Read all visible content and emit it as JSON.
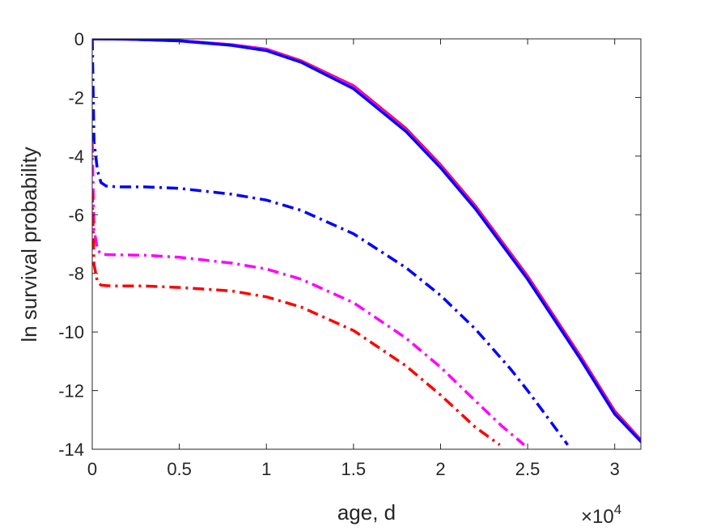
{
  "chart_data": {
    "type": "line",
    "title": "",
    "xlabel": "age, d",
    "ylabel": "ln survival probability",
    "x_exponent_label": {
      "base": "×10",
      "exponent": "4"
    },
    "xlim": [
      0,
      31500
    ],
    "ylim": [
      -14,
      0
    ],
    "xticks": [
      0,
      5000,
      10000,
      15000,
      20000,
      25000,
      30000
    ],
    "xtick_labels": [
      "0",
      "0.5",
      "1",
      "1.5",
      "2",
      "2.5",
      "3"
    ],
    "yticks": [
      0,
      -2,
      -4,
      -6,
      -8,
      -10,
      -12,
      -14
    ],
    "ytick_labels": [
      "0",
      "-2",
      "-4",
      "-6",
      "-8",
      "-10",
      "-12",
      "-14"
    ],
    "grid": false,
    "box": true,
    "colors": {
      "axis": "#262626",
      "red": "#ff0000",
      "magenta": "#ff00ff",
      "blue": "#0000ff"
    },
    "series": [
      {
        "color": "#ff0000",
        "style": "solid",
        "x": [
          0,
          2000,
          5000,
          8000,
          10000,
          12000,
          15000,
          18000,
          20000,
          22000,
          25000,
          28000,
          30000,
          31600
        ],
        "y": [
          0,
          -0.01,
          -0.06,
          -0.2,
          -0.35,
          -0.75,
          -1.6,
          -3.05,
          -4.3,
          -5.7,
          -8.1,
          -10.8,
          -12.7,
          -13.75
        ]
      },
      {
        "color": "#ff00ff",
        "style": "solid",
        "x": [
          0,
          2000,
          5000,
          8000,
          10000,
          12000,
          15000,
          18000,
          20000,
          22000,
          25000,
          28000,
          30000,
          31600
        ],
        "y": [
          0,
          -0.01,
          -0.06,
          -0.2,
          -0.36,
          -0.78,
          -1.63,
          -3.1,
          -4.35,
          -5.75,
          -8.15,
          -10.85,
          -12.75,
          -13.78
        ]
      },
      {
        "color": "#0000ff",
        "style": "solid",
        "x": [
          0,
          2000,
          5000,
          8000,
          10000,
          12000,
          15000,
          18000,
          20000,
          22000,
          25000,
          28000,
          30000,
          31600
        ],
        "y": [
          0,
          -0.01,
          -0.07,
          -0.22,
          -0.4,
          -0.8,
          -1.7,
          -3.15,
          -4.4,
          -5.8,
          -8.2,
          -10.9,
          -12.8,
          -13.8
        ]
      },
      {
        "color": "#0000ff",
        "style": "dashdot",
        "x": [
          0,
          100,
          300,
          500,
          800,
          1500,
          3000,
          5000,
          8000,
          10000,
          12000,
          15000,
          18000,
          20000,
          22000,
          24000,
          25000,
          26000,
          27300
        ],
        "y": [
          0,
          -3.5,
          -4.5,
          -4.9,
          -5.02,
          -5.05,
          -5.05,
          -5.1,
          -5.3,
          -5.5,
          -5.85,
          -6.65,
          -7.8,
          -8.75,
          -9.9,
          -11.25,
          -12.0,
          -12.8,
          -13.85
        ]
      },
      {
        "color": "#ff00ff",
        "style": "dashdot",
        "x": [
          0,
          100,
          300,
          500,
          800,
          1500,
          3000,
          5000,
          8000,
          10000,
          12000,
          15000,
          18000,
          20000,
          22000,
          23500,
          24800
        ],
        "y": [
          -3.5,
          -6.5,
          -7.2,
          -7.33,
          -7.36,
          -7.37,
          -7.38,
          -7.45,
          -7.65,
          -7.85,
          -8.2,
          -9.0,
          -10.2,
          -11.2,
          -12.35,
          -13.2,
          -13.85
        ]
      },
      {
        "color": "#ff0000",
        "style": "dashdot",
        "x": [
          0,
          100,
          300,
          500,
          800,
          1500,
          3000,
          5000,
          8000,
          10000,
          12000,
          15000,
          18000,
          20000,
          22000,
          23400
        ],
        "y": [
          -5.2,
          -7.7,
          -8.3,
          -8.4,
          -8.42,
          -8.43,
          -8.43,
          -8.48,
          -8.6,
          -8.8,
          -9.15,
          -9.95,
          -11.15,
          -12.15,
          -13.25,
          -13.85
        ]
      }
    ]
  }
}
